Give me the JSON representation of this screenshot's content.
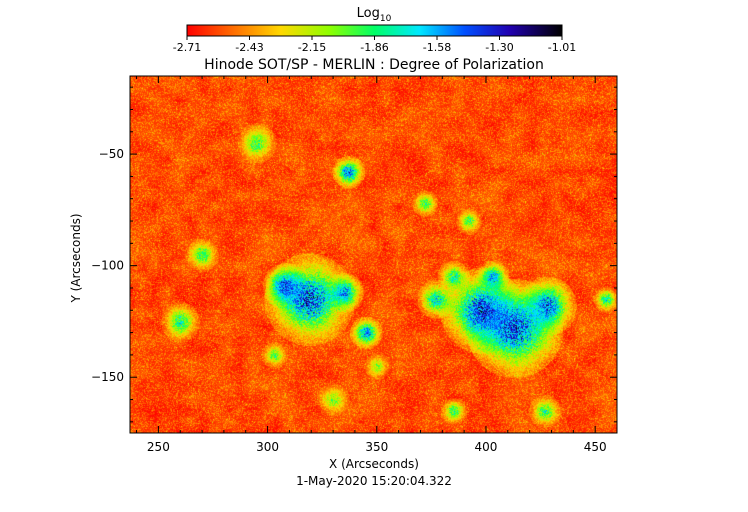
{
  "chart_data": {
    "type": "heatmap",
    "title": "Hinode SOT/SP - MERLIN : Degree of Polarization",
    "colorbar": {
      "label_base": "Log",
      "label_sub": "10",
      "ticks": [
        "-2.71",
        "-2.43",
        "-2.15",
        "-1.86",
        "-1.58",
        "-1.30",
        "-1.01"
      ],
      "range": [
        -2.71,
        -1.01
      ],
      "colormap": "rainbow (red - yellow - green - cyan - blue - black)",
      "placement": "top"
    },
    "xlabel": "X (Arcseconds)",
    "ylabel": "Y (Arcseconds)",
    "xlim": [
      237,
      460
    ],
    "ylim": [
      -175,
      -15
    ],
    "xticks": [
      250,
      300,
      350,
      400,
      450
    ],
    "yticks": [
      -50,
      -100,
      -150
    ],
    "timestamp": "1-May-2020 15:20:04.322",
    "grid": false,
    "background_level_range": [
      -2.71,
      -2.3
    ],
    "enhanced_regions": [
      {
        "x": 319,
        "y": -115,
        "r": 14,
        "peak": -1.3
      },
      {
        "x": 308,
        "y": -109,
        "r": 7,
        "peak": -1.35
      },
      {
        "x": 335,
        "y": -112,
        "r": 6,
        "peak": -1.45
      },
      {
        "x": 345,
        "y": -130,
        "r": 5,
        "peak": -1.4
      },
      {
        "x": 337,
        "y": -58,
        "r": 5,
        "peak": -1.4
      },
      {
        "x": 398,
        "y": -120,
        "r": 13,
        "peak": -1.3
      },
      {
        "x": 413,
        "y": -128,
        "r": 15,
        "peak": -1.3
      },
      {
        "x": 428,
        "y": -118,
        "r": 9,
        "peak": -1.4
      },
      {
        "x": 403,
        "y": -105,
        "r": 5,
        "peak": -1.5
      },
      {
        "x": 377,
        "y": -115,
        "r": 6,
        "peak": -1.6
      },
      {
        "x": 385,
        "y": -105,
        "r": 5,
        "peak": -1.7
      },
      {
        "x": 260,
        "y": -125,
        "r": 6,
        "peak": -1.75
      },
      {
        "x": 270,
        "y": -95,
        "r": 5,
        "peak": -1.8
      },
      {
        "x": 295,
        "y": -45,
        "r": 6,
        "peak": -1.85
      },
      {
        "x": 372,
        "y": -72,
        "r": 4,
        "peak": -1.8
      },
      {
        "x": 392,
        "y": -80,
        "r": 4,
        "peak": -1.85
      },
      {
        "x": 427,
        "y": -165,
        "r": 5,
        "peak": -1.8
      },
      {
        "x": 303,
        "y": -140,
        "r": 4,
        "peak": -1.9
      },
      {
        "x": 455,
        "y": -115,
        "r": 4,
        "peak": -1.7
      },
      {
        "x": 350,
        "y": -145,
        "r": 4,
        "peak": -2.0
      },
      {
        "x": 385,
        "y": -165,
        "r": 4,
        "peak": -1.8
      },
      {
        "x": 330,
        "y": -160,
        "r": 5,
        "peak": -2.0
      }
    ]
  }
}
